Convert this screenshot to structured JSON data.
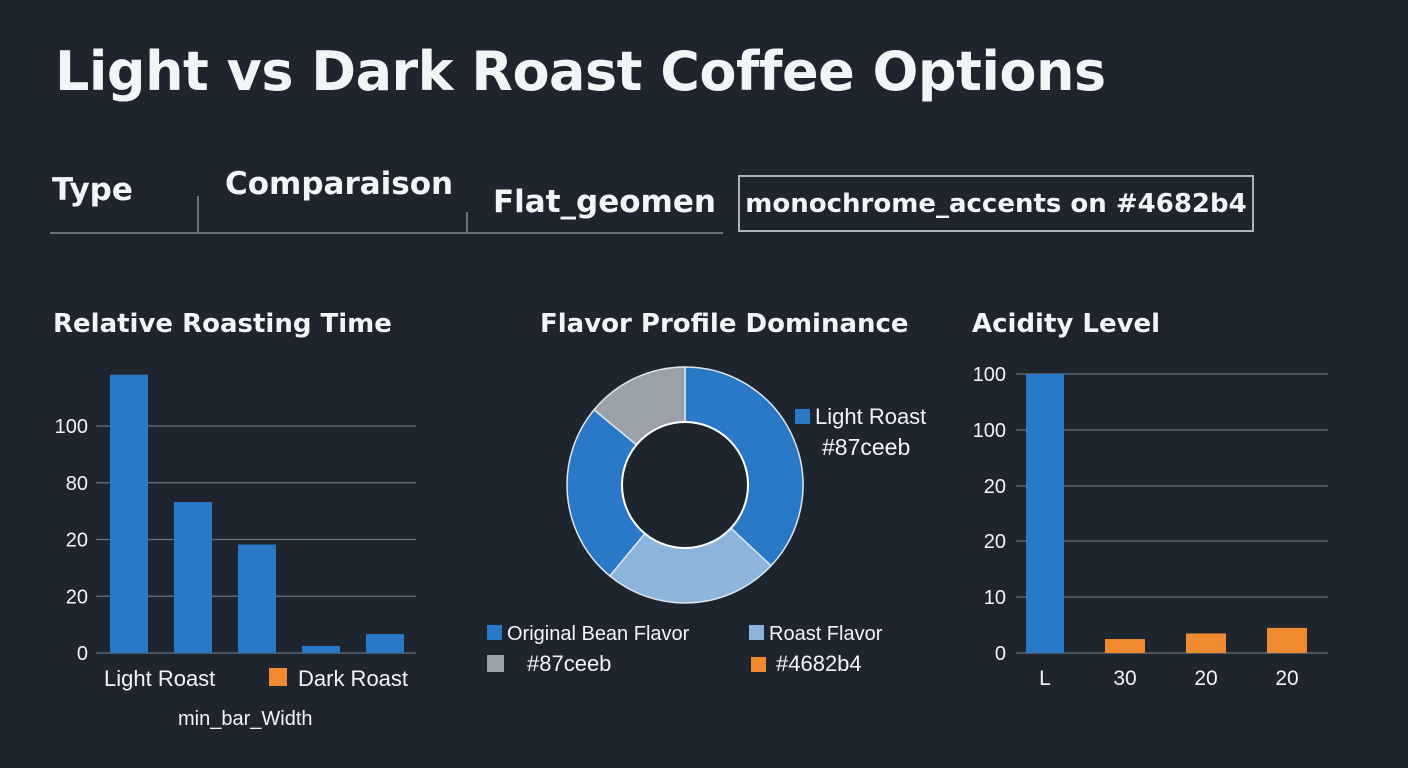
{
  "title": "Light vs Dark Roast Coffee Options",
  "meta": {
    "type_label": "Type",
    "comparison_label": "Comparaison",
    "style_label": "Flat_geomen",
    "accent_label": "monochrome_accents on #4682b4"
  },
  "colors": {
    "blue": "#2a78c8",
    "light_blue": "#8cb4dc",
    "gray": "#9aa1a9",
    "orange": "#f08a30",
    "grid": "#6b7380"
  },
  "chart_data": [
    {
      "type": "bar",
      "title": "Relative Roasting Time",
      "y_tick_labels": [
        "0",
        "20",
        "20",
        "80",
        "100"
      ],
      "ylim": [
        0,
        120
      ],
      "values": [
        118,
        64,
        46,
        3,
        8
      ],
      "legend": [
        {
          "name": "Light Roast",
          "color": "#2a78c8"
        },
        {
          "name": "Dark Roast",
          "color": "#f08a30"
        }
      ],
      "footnote": "min_bar_Width"
    },
    {
      "type": "pie",
      "title": "Flavor Profile Dominance",
      "slices": [
        {
          "label": "Light Roast",
          "value": 37,
          "color": "#2a78c8"
        },
        {
          "label": "Roast Flavor",
          "value": 24,
          "color": "#8cb4dc"
        },
        {
          "label": "Original Bean Flavor",
          "value": 25,
          "color": "#2a78c8"
        },
        {
          "label": "",
          "value": 14,
          "color": "#9aa1a9"
        }
      ],
      "legend": [
        {
          "name": "Light Roast",
          "sub": "#87ceeb",
          "color": "#2a78c8"
        },
        {
          "name": "Original Bean Flavor",
          "sub": "#87ceeb",
          "color": "#2a78c8",
          "sub_color": "#9aa1a9"
        },
        {
          "name": "Roast Flavor",
          "sub": "#4682b4",
          "color": "#8cb4dc",
          "sub_color": "#f08a30"
        }
      ]
    },
    {
      "type": "bar",
      "title": "Acidity Level",
      "y_tick_labels": [
        "0",
        "10",
        "20",
        "20",
        "100",
        "100"
      ],
      "ylim": [
        0,
        100
      ],
      "categories": [
        "L",
        "30",
        "20",
        "20"
      ],
      "values": [
        100,
        5,
        7,
        9
      ],
      "colors": [
        "#2a78c8",
        "#f08a30",
        "#f08a30",
        "#f08a30"
      ]
    }
  ]
}
